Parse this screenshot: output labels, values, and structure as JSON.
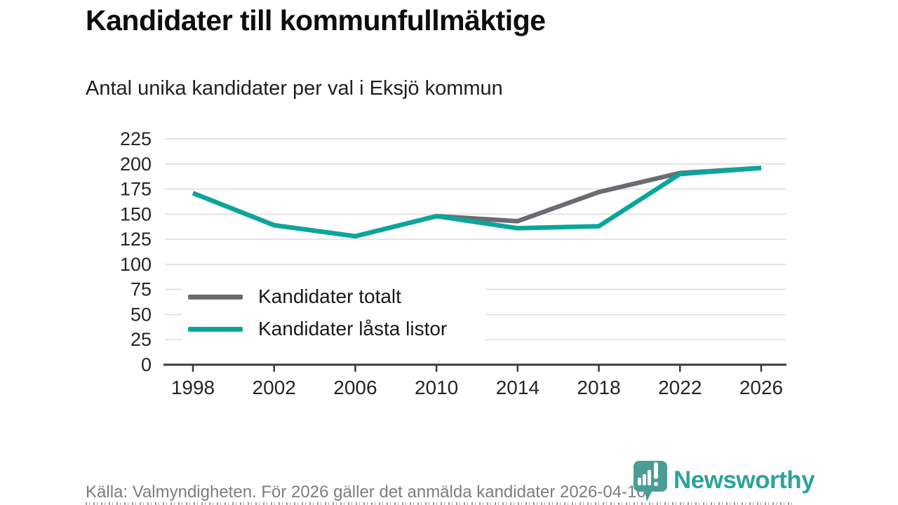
{
  "header": {
    "title": "Kandidater till kommunfullmäktige",
    "subtitle": "Antal unika kandidater per val i Eksjö kommun"
  },
  "chart_data": {
    "type": "line",
    "x": [
      1998,
      2002,
      2006,
      2010,
      2014,
      2018,
      2022,
      2026
    ],
    "series": [
      {
        "name": "Kandidater totalt",
        "color": "#6d6a72",
        "values": [
          171,
          139,
          128,
          148,
          143,
          172,
          191,
          196
        ]
      },
      {
        "name": "Kandidater låsta listor",
        "color": "#0aa69b",
        "values": [
          171,
          139,
          128,
          148,
          136,
          138,
          190,
          196
        ]
      }
    ],
    "ylim": [
      0,
      225
    ],
    "y_ticks": [
      0,
      25,
      50,
      75,
      100,
      125,
      150,
      175,
      200,
      225
    ],
    "grid": "horizontal-only",
    "legend_position": "inside-bottom-left",
    "axis_color": "#3a3a3a",
    "gridline_color": "#e3e3e3",
    "tick_label_color": "#252525"
  },
  "footer": {
    "source_text": "Källa: Valmyndigheten. För 2026 gäller det anmälda kandidater 2026-04-10."
  },
  "branding": {
    "logo_text": "Newsworthy",
    "logo_text_color": "#2da39a",
    "logo_icon_color": "#4a9d96",
    "logo_icon": "newsworthy-speech-bubble-bar-chart-icon"
  }
}
